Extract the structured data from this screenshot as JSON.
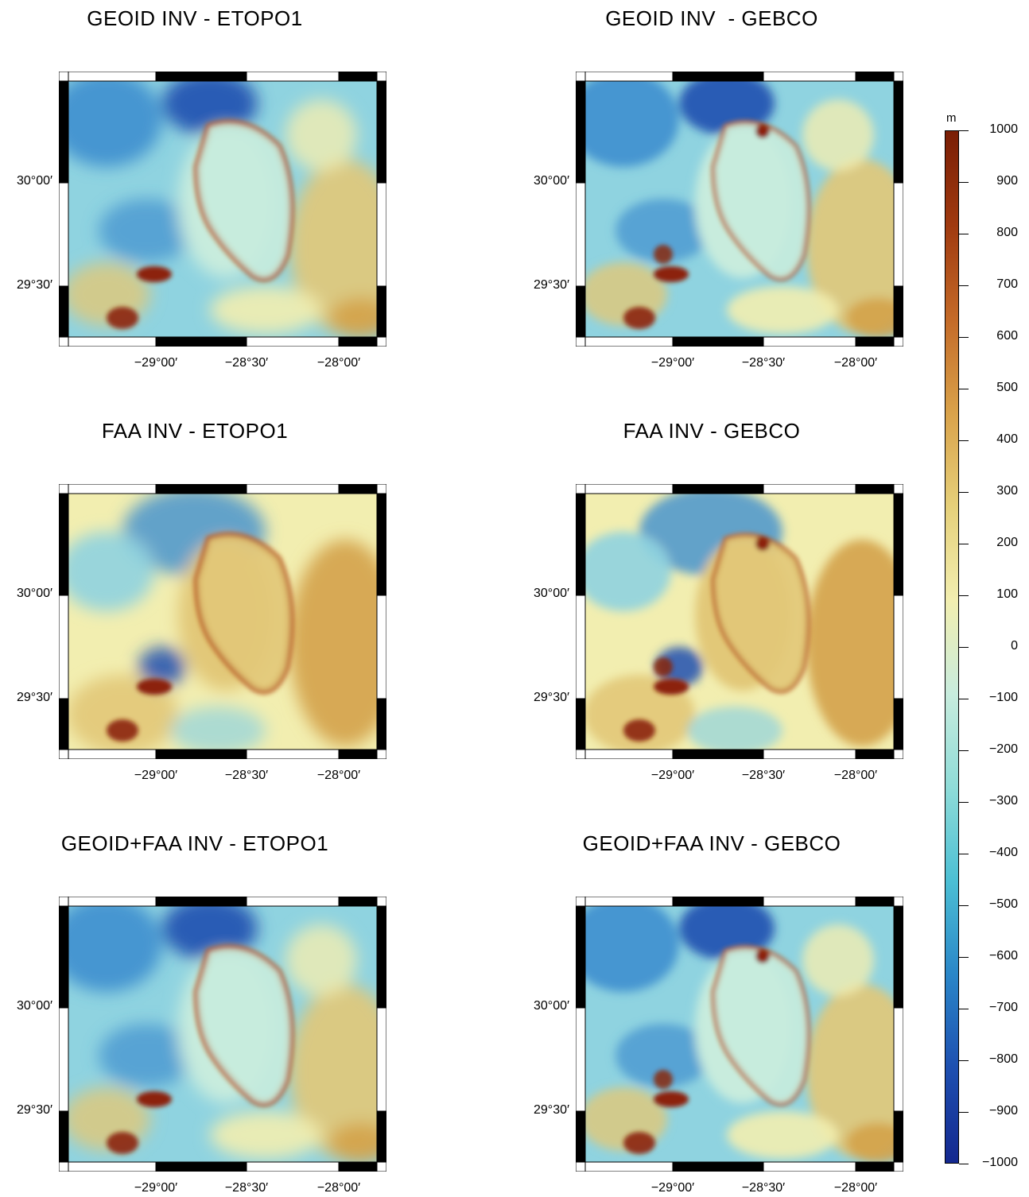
{
  "panels": [
    {
      "title": "GEOID INV - ETOPO1",
      "variant": "smooth",
      "y_ticks": [
        "30°00′",
        "29°30′"
      ],
      "x_ticks": [
        "−29°00′",
        "−28°30′",
        "−28°00′"
      ]
    },
    {
      "title": "GEOID INV  - GEBCO",
      "variant": "detailed",
      "y_ticks": [
        "30°00′",
        "29°30′"
      ],
      "x_ticks": [
        "−29°00′",
        "−28°30′",
        "−28°00′"
      ]
    },
    {
      "title": "FAA INV - ETOPO1",
      "variant": "smooth-warm",
      "y_ticks": [
        "30°00′",
        "29°30′"
      ],
      "x_ticks": [
        "−29°00′",
        "−28°30′",
        "−28°00′"
      ]
    },
    {
      "title": "FAA INV - GEBCO",
      "variant": "detailed-warm",
      "y_ticks": [
        "30°00′",
        "29°30′"
      ],
      "x_ticks": [
        "−29°00′",
        "−28°30′",
        "−28°00′"
      ]
    },
    {
      "title": "GEOID+FAA INV - ETOPO1",
      "variant": "smooth",
      "y_ticks": [
        "30°00′",
        "29°30′"
      ],
      "x_ticks": [
        "−29°00′",
        "−28°30′",
        "−28°00′"
      ]
    },
    {
      "title": "GEOID+FAA INV - GEBCO",
      "variant": "detailed",
      "y_ticks": [
        "30°00′",
        "29°30′"
      ],
      "x_ticks": [
        "−29°00′",
        "−28°30′",
        "−28°00′"
      ]
    }
  ],
  "colorbar": {
    "unit": "m",
    "labels": [
      "1000",
      "900",
      "800",
      "700",
      "600",
      "500",
      "400",
      "300",
      "200",
      "100",
      "0",
      "−100",
      "−200",
      "−300",
      "−400",
      "−500",
      "−600",
      "−700",
      "−800",
      "−900",
      "−1000"
    ],
    "colors": [
      "#7a1e05",
      "#a03a10",
      "#c46a28",
      "#d9a24a",
      "#e6d07a",
      "#f2eeb0",
      "#c8ecdd",
      "#8fdcd8",
      "#4cbfd4",
      "#2a86c8",
      "#1e4fb0",
      "#14288f"
    ]
  },
  "palette": {
    "low": "#1e4fb0",
    "blue": "#3f8fcf",
    "lightblue": "#8fd3e0",
    "mint": "#c8ecdd",
    "cream": "#f2eeb0",
    "tan": "#e2c878",
    "ochre": "#d4a24a",
    "rust": "#b85a1e",
    "high": "#8c2208"
  }
}
